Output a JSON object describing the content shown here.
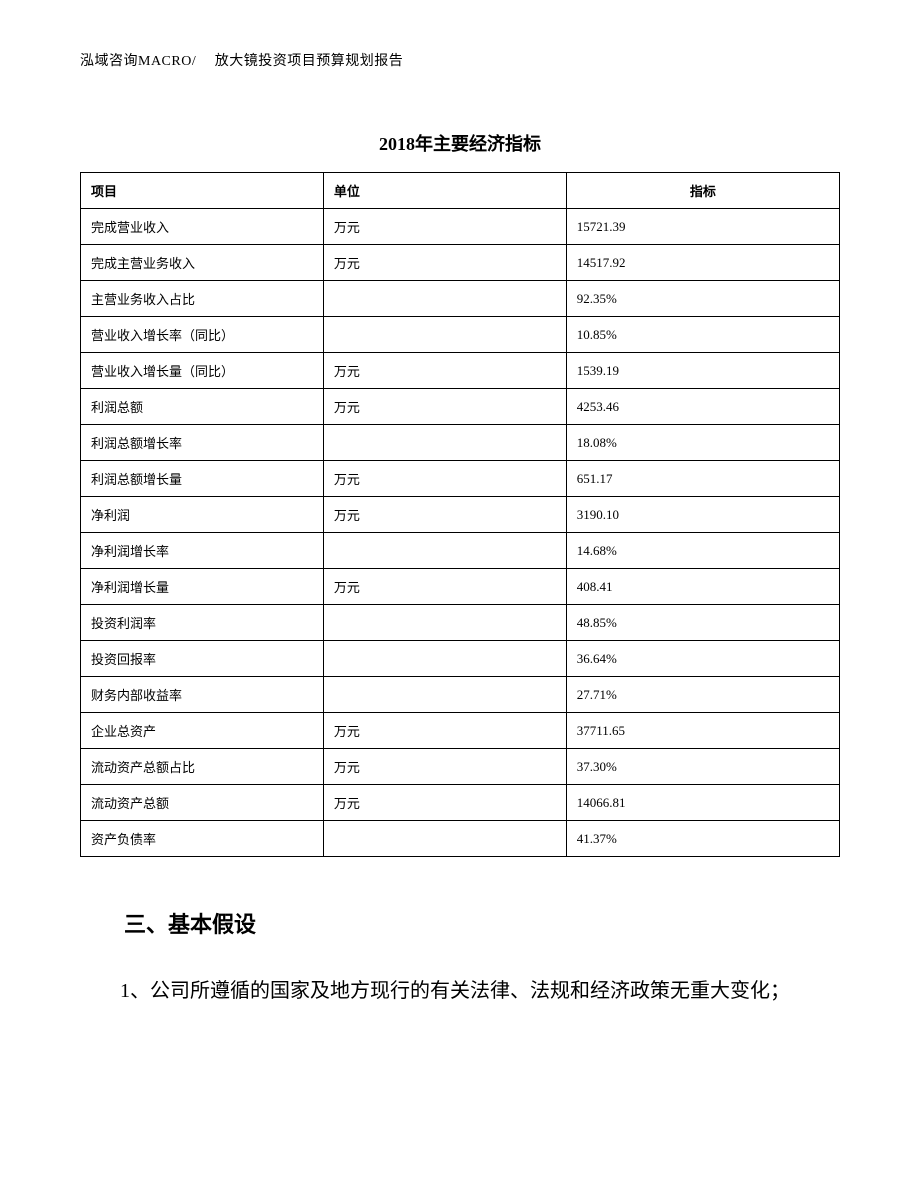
{
  "header": "泓域咨询MACRO/　 放大镜投资项目预算规划报告",
  "table": {
    "title": "2018年主要经济指标",
    "columns": [
      "项目",
      "单位",
      "指标"
    ],
    "rows": [
      [
        "完成营业收入",
        "万元",
        "15721.39"
      ],
      [
        "完成主营业务收入",
        "万元",
        "14517.92"
      ],
      [
        "主营业务收入占比",
        "",
        "92.35%"
      ],
      [
        "营业收入增长率（同比）",
        "",
        "10.85%"
      ],
      [
        "营业收入增长量（同比）",
        "万元",
        "1539.19"
      ],
      [
        "利润总额",
        "万元",
        "4253.46"
      ],
      [
        "利润总额增长率",
        "",
        "18.08%"
      ],
      [
        "利润总额增长量",
        "万元",
        "651.17"
      ],
      [
        "净利润",
        "万元",
        "3190.10"
      ],
      [
        "净利润增长率",
        "",
        "14.68%"
      ],
      [
        "净利润增长量",
        "万元",
        "408.41"
      ],
      [
        "投资利润率",
        "",
        "48.85%"
      ],
      [
        "投资回报率",
        "",
        "36.64%"
      ],
      [
        "财务内部收益率",
        "",
        "27.71%"
      ],
      [
        "企业总资产",
        "万元",
        "37711.65"
      ],
      [
        "流动资产总额占比",
        "万元",
        "37.30%"
      ],
      [
        "流动资产总额",
        "万元",
        "14066.81"
      ],
      [
        "资产负债率",
        "",
        "41.37%"
      ]
    ]
  },
  "section": {
    "heading": "三、基本假设",
    "body": "1、公司所遵循的国家及地方现行的有关法律、法规和经济政策无重大变化；"
  }
}
